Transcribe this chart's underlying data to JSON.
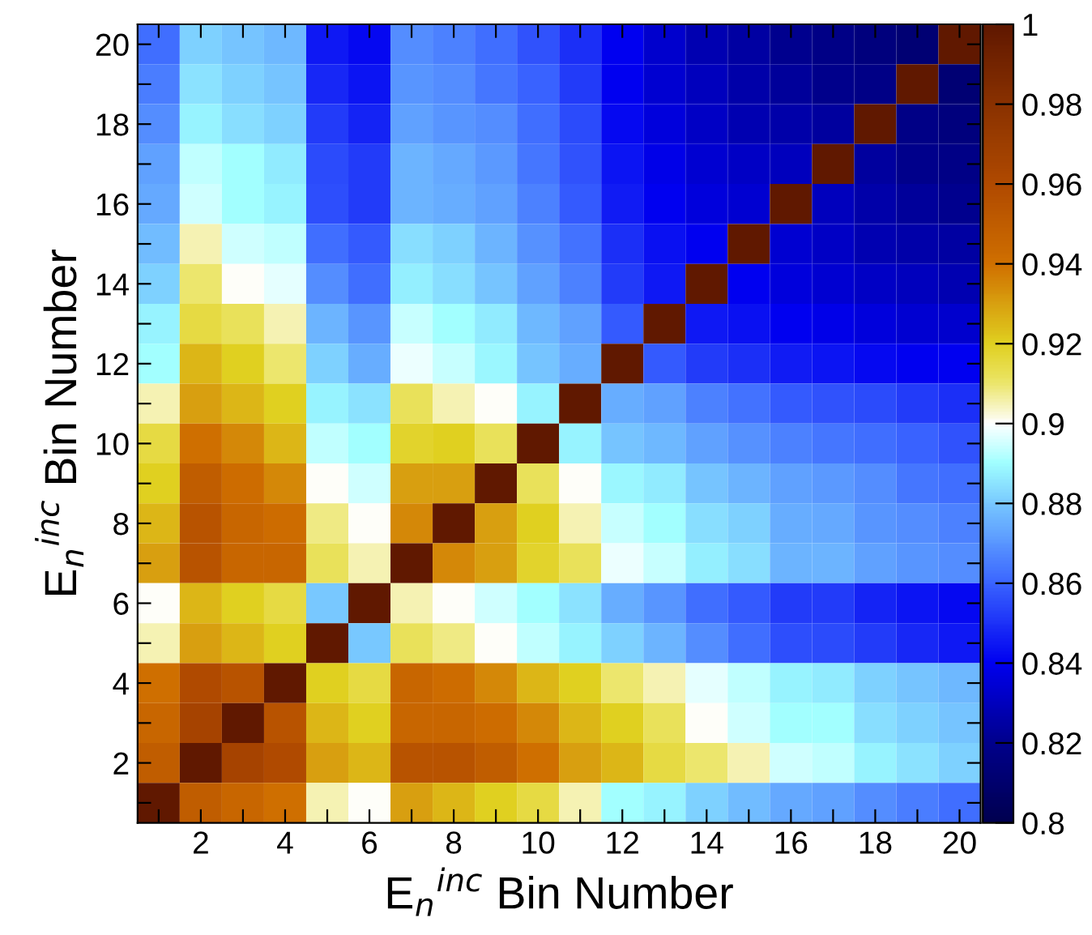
{
  "chart_data": {
    "type": "heatmap",
    "xlabel": "E$_{n}$$^{inc}$ Bin Number",
    "ylabel": "E$_{n}$$^{inc}$ Bin Number",
    "categories": [
      null,
      "2",
      null,
      "4",
      null,
      "6",
      null,
      "8",
      null,
      "10",
      null,
      "12",
      null,
      "14",
      null,
      "16",
      null,
      "18",
      null,
      "20"
    ],
    "y_categories": [
      "20",
      null,
      "18",
      null,
      "16",
      null,
      "14",
      null,
      "12",
      null,
      "10",
      null,
      "8",
      null,
      "6",
      null,
      "4",
      null,
      "2",
      null
    ],
    "cells": [
      [
        0.862,
        0.882,
        0.879,
        0.877,
        0.845,
        0.842,
        0.868,
        0.866,
        0.862,
        0.857,
        0.85,
        0.84,
        0.833,
        0.828,
        0.825,
        0.821,
        0.818,
        0.815,
        0.812,
        1
      ],
      [
        0.865,
        0.885,
        0.882,
        0.879,
        0.848,
        0.844,
        0.87,
        0.868,
        0.864,
        0.86,
        0.852,
        0.84,
        0.834,
        0.83,
        0.826,
        0.823,
        0.82,
        0.818,
        1,
        0.812
      ],
      [
        0.868,
        0.888,
        0.884,
        0.882,
        0.852,
        0.847,
        0.872,
        0.87,
        0.868,
        0.862,
        0.855,
        0.842,
        0.836,
        0.832,
        0.828,
        0.826,
        0.824,
        1,
        0.818,
        0.815
      ],
      [
        0.872,
        0.893,
        0.89,
        0.886,
        0.855,
        0.852,
        0.876,
        0.874,
        0.871,
        0.864,
        0.857,
        0.844,
        0.839,
        0.834,
        0.832,
        0.83,
        1,
        0.824,
        0.82,
        0.818
      ],
      [
        0.874,
        0.895,
        0.89,
        0.888,
        0.856,
        0.852,
        0.876,
        0.875,
        0.872,
        0.866,
        0.858,
        0.846,
        0.84,
        0.836,
        0.834,
        1,
        0.83,
        0.826,
        0.823,
        0.821
      ],
      [
        0.878,
        0.905,
        0.895,
        0.893,
        0.862,
        0.858,
        0.884,
        0.882,
        0.876,
        0.869,
        0.863,
        0.85,
        0.843,
        0.84,
        1,
        0.834,
        0.832,
        0.828,
        0.826,
        0.825
      ],
      [
        0.882,
        0.91,
        0.9,
        0.897,
        0.868,
        0.862,
        0.887,
        0.884,
        0.879,
        0.872,
        0.866,
        0.852,
        0.845,
        1,
        0.84,
        0.836,
        0.834,
        0.832,
        0.83,
        0.828
      ],
      [
        0.888,
        0.915,
        0.912,
        0.905,
        0.876,
        0.87,
        0.894,
        0.89,
        0.886,
        0.877,
        0.872,
        0.858,
        1,
        0.845,
        0.843,
        0.84,
        0.839,
        0.836,
        0.834,
        0.833
      ],
      [
        0.89,
        0.925,
        0.92,
        0.91,
        0.882,
        0.875,
        0.898,
        0.894,
        0.889,
        0.879,
        0.875,
        1,
        0.858,
        0.852,
        0.85,
        0.846,
        0.844,
        0.842,
        0.84,
        0.84
      ],
      [
        0.905,
        0.93,
        0.925,
        0.92,
        0.888,
        0.885,
        0.912,
        0.905,
        0.9,
        0.888,
        1,
        0.875,
        0.872,
        0.866,
        0.863,
        0.858,
        0.857,
        0.855,
        0.852,
        0.85
      ],
      [
        0.915,
        0.94,
        0.935,
        0.925,
        0.893,
        0.89,
        0.918,
        0.92,
        0.912,
        1,
        0.888,
        0.879,
        0.877,
        0.872,
        0.869,
        0.866,
        0.864,
        0.862,
        0.86,
        0.857
      ],
      [
        0.92,
        0.95,
        0.942,
        0.935,
        0.9,
        0.895,
        0.93,
        0.93,
        1,
        0.912,
        0.9,
        0.889,
        0.886,
        0.879,
        0.876,
        0.872,
        0.871,
        0.868,
        0.864,
        0.862
      ],
      [
        0.925,
        0.955,
        0.945,
        0.942,
        0.908,
        0.9,
        0.935,
        1,
        0.93,
        0.92,
        0.905,
        0.894,
        0.89,
        0.884,
        0.882,
        0.875,
        0.874,
        0.87,
        0.868,
        0.866
      ],
      [
        0.93,
        0.955,
        0.945,
        0.945,
        0.912,
        0.905,
        1,
        0.935,
        0.93,
        0.918,
        0.912,
        0.898,
        0.894,
        0.887,
        0.884,
        0.876,
        0.876,
        0.872,
        0.87,
        0.868
      ],
      [
        0.9,
        0.925,
        0.92,
        0.915,
        0.88,
        1,
        0.905,
        0.9,
        0.895,
        0.89,
        0.885,
        0.875,
        0.87,
        0.862,
        0.858,
        0.852,
        0.852,
        0.847,
        0.844,
        0.842
      ],
      [
        0.905,
        0.93,
        0.925,
        0.92,
        1,
        0.88,
        0.912,
        0.908,
        0.9,
        0.893,
        0.888,
        0.882,
        0.876,
        0.868,
        0.862,
        0.856,
        0.855,
        0.852,
        0.848,
        0.845
      ],
      [
        0.94,
        0.96,
        0.955,
        1,
        0.92,
        0.915,
        0.945,
        0.942,
        0.935,
        0.925,
        0.92,
        0.91,
        0.905,
        0.897,
        0.893,
        0.888,
        0.886,
        0.882,
        0.879,
        0.877
      ],
      [
        0.945,
        0.965,
        1,
        0.955,
        0.925,
        0.92,
        0.945,
        0.945,
        0.942,
        0.935,
        0.925,
        0.92,
        0.912,
        0.9,
        0.895,
        0.89,
        0.89,
        0.884,
        0.882,
        0.879
      ],
      [
        0.95,
        1,
        0.965,
        0.96,
        0.93,
        0.925,
        0.955,
        0.955,
        0.95,
        0.94,
        0.93,
        0.925,
        0.915,
        0.91,
        0.905,
        0.895,
        0.893,
        0.888,
        0.885,
        0.882
      ],
      [
        1,
        0.95,
        0.945,
        0.94,
        0.905,
        0.9,
        0.93,
        0.925,
        0.92,
        0.915,
        0.905,
        0.89,
        0.888,
        0.882,
        0.878,
        0.874,
        0.872,
        0.868,
        0.865,
        0.862
      ]
    ],
    "clim": [
      0.8,
      1
    ],
    "cticks": [
      0.8,
      0.82,
      0.84,
      0.86,
      0.88,
      0.9,
      0.92,
      0.94,
      0.96,
      0.98,
      1
    ],
    "grid": false
  }
}
